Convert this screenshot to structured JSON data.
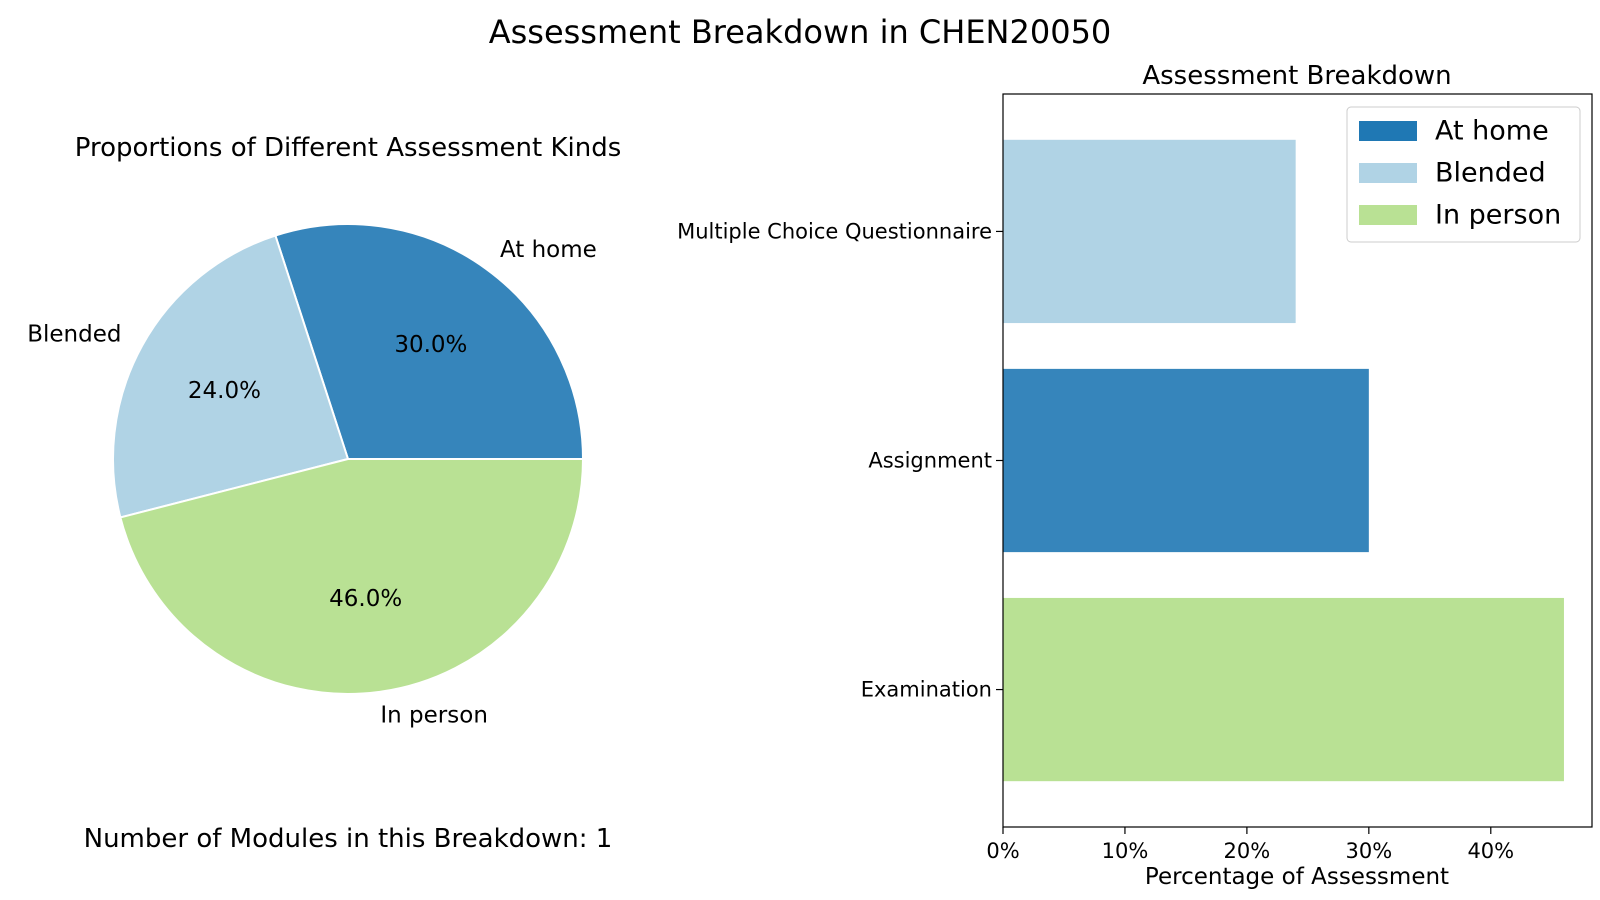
{
  "figure": {
    "suptitle": "Assessment Breakdown in CHEN20050",
    "footnote": "Number of Modules in this Breakdown: 1"
  },
  "colors": {
    "at_home": "#3685BB",
    "blended": "#B0D3E5",
    "in_person": "#B9E194",
    "legend_at_home": "#1f78b4",
    "wedge_edge": "#ffffff",
    "axes": "#000000"
  },
  "chart_data": [
    {
      "type": "pie",
      "title": "Proportions of Different Assessment Kinds",
      "slices": [
        {
          "label": "At home",
          "value": 30.0,
          "pct_label": "30.0%",
          "color_key": "at_home"
        },
        {
          "label": "Blended",
          "value": 24.0,
          "pct_label": "24.0%",
          "color_key": "blended"
        },
        {
          "label": "In person",
          "value": 46.0,
          "pct_label": "46.0%",
          "color_key": "in_person"
        }
      ],
      "start_angle_deg": 0,
      "direction": "counterclockwise"
    },
    {
      "type": "bar",
      "orientation": "horizontal",
      "title": "Assessment Breakdown",
      "categories": [
        "Multiple Choice Questionnaire",
        "Assignment",
        "Examination"
      ],
      "values": [
        24,
        30,
        46
      ],
      "bar_kinds": [
        "Blended",
        "At home",
        "In person"
      ],
      "xlabel": "Percentage of Assessment",
      "ylabel": "",
      "xlim": [
        0,
        48.3
      ],
      "xticks": [
        0,
        10,
        20,
        30,
        40
      ],
      "xtick_labels": [
        "0%",
        "10%",
        "20%",
        "30%",
        "40%"
      ],
      "legend": {
        "placement": "top-right",
        "entries": [
          "At home",
          "Blended",
          "In person"
        ]
      },
      "grid": false
    }
  ]
}
